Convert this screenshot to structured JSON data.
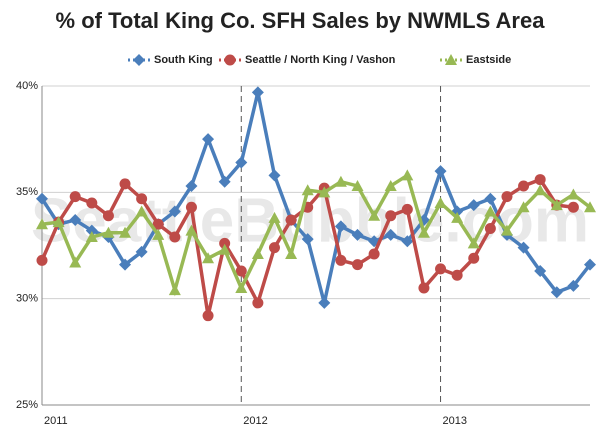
{
  "chart_data": {
    "type": "line",
    "title": "% of Total King Co. SFH Sales by NWMLS Area",
    "watermark": "SeattleBubble.com",
    "categories": [
      "2011",
      null,
      null,
      null,
      null,
      null,
      null,
      null,
      null,
      null,
      null,
      null,
      "2012",
      null,
      null,
      null,
      null,
      null,
      null,
      null,
      null,
      null,
      null,
      null,
      "2013",
      null,
      null,
      null,
      null,
      null,
      null,
      null,
      null,
      null
    ],
    "series": [
      {
        "name": "South King",
        "color": "#4a7ebb",
        "marker": "diamond",
        "values": [
          34.7,
          33.5,
          33.7,
          33.2,
          32.9,
          31.6,
          32.2,
          33.5,
          34.1,
          35.3,
          37.5,
          35.5,
          36.4,
          39.7,
          35.8,
          33.7,
          32.8,
          29.8,
          33.4,
          33.0,
          32.7,
          33.0,
          32.7,
          33.7,
          36.0,
          34.1,
          34.4,
          34.7,
          33.0,
          32.4,
          31.3,
          30.3,
          30.6,
          31.6
        ]
      },
      {
        "name": "Seattle / North King / Vashon",
        "color": "#be4b48",
        "marker": "circle",
        "values": [
          31.8,
          33.6,
          34.8,
          34.5,
          33.9,
          35.4,
          34.7,
          33.5,
          32.9,
          34.3,
          29.2,
          32.6,
          31.3,
          29.8,
          32.4,
          33.7,
          34.3,
          35.2,
          31.8,
          31.6,
          32.1,
          33.9,
          34.2,
          30.5,
          31.4,
          31.1,
          31.9,
          33.3,
          34.8,
          35.3,
          35.6,
          34.4,
          34.3,
          null
        ]
      },
      {
        "name": "Eastside",
        "color": "#98b954",
        "marker": "triangle",
        "values": [
          33.5,
          33.6,
          31.7,
          32.9,
          33.1,
          33.1,
          34.1,
          33.0,
          30.4,
          33.2,
          31.9,
          32.3,
          30.5,
          32.1,
          33.8,
          32.1,
          35.1,
          35.0,
          35.5,
          35.3,
          33.9,
          35.3,
          35.8,
          33.1,
          34.5,
          33.8,
          32.6,
          34.1,
          33.2,
          34.3,
          35.1,
          34.4,
          34.9,
          34.3
        ]
      }
    ],
    "ylim": [
      25,
      40
    ],
    "yticks": [
      {
        "value": 25,
        "label": "25%"
      },
      {
        "value": 30,
        "label": "30%"
      },
      {
        "value": 35,
        "label": "35%"
      },
      {
        "value": 40,
        "label": "40%"
      }
    ],
    "grid": true,
    "legend": "top"
  }
}
